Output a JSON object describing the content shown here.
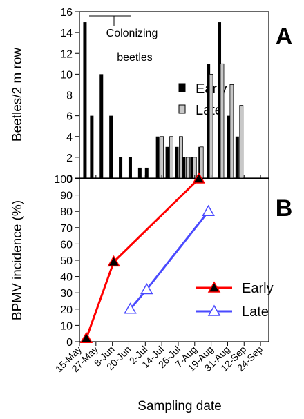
{
  "chart_data": [
    {
      "type": "bar",
      "panel_label": "A",
      "ylabel": "Beetles/2 m row",
      "ylim": [
        0,
        16
      ],
      "yticks": [
        0,
        2,
        4,
        6,
        8,
        10,
        12,
        14,
        16
      ],
      "grid": false,
      "legend_position": "right",
      "annotation": {
        "line1": "Colonizing",
        "line2": "beetles"
      },
      "series": [
        {
          "name": "Early",
          "color": "#000000",
          "points": [
            {
              "x": "2000-05-19",
              "y": 15
            },
            {
              "x": "2000-05-24",
              "y": 6
            },
            {
              "x": "2000-05-31",
              "y": 10
            },
            {
              "x": "2000-06-07",
              "y": 6
            },
            {
              "x": "2000-06-14",
              "y": 2
            },
            {
              "x": "2000-06-21",
              "y": 2
            },
            {
              "x": "2000-06-28",
              "y": 1
            },
            {
              "x": "2000-07-03",
              "y": 1
            },
            {
              "x": "2000-07-11",
              "y": 4
            },
            {
              "x": "2000-07-18",
              "y": 3
            },
            {
              "x": "2000-07-25",
              "y": 3
            },
            {
              "x": "2000-07-30",
              "y": 2
            },
            {
              "x": "2000-08-05",
              "y": 2
            },
            {
              "x": "2000-08-11",
              "y": 3
            },
            {
              "x": "2000-08-17",
              "y": 11
            },
            {
              "x": "2000-08-25",
              "y": 15
            },
            {
              "x": "2000-09-01",
              "y": 6
            },
            {
              "x": "2000-09-07",
              "y": 4
            }
          ]
        },
        {
          "name": "Late",
          "color": "#c8c8c8",
          "points": [
            {
              "x": "2000-07-14",
              "y": 4
            },
            {
              "x": "2000-07-21",
              "y": 4
            },
            {
              "x": "2000-07-28",
              "y": 4
            },
            {
              "x": "2000-08-02",
              "y": 2
            },
            {
              "x": "2000-08-07",
              "y": 2
            },
            {
              "x": "2000-08-12",
              "y": 3
            },
            {
              "x": "2000-08-19",
              "y": 10
            },
            {
              "x": "2000-08-27",
              "y": 11
            },
            {
              "x": "2000-09-03",
              "y": 9
            },
            {
              "x": "2000-09-10",
              "y": 7
            }
          ]
        }
      ]
    },
    {
      "type": "line",
      "panel_label": "B",
      "ylabel": "BPMV incidence (%)",
      "xlabel": "Sampling date",
      "ylim": [
        0,
        100
      ],
      "yticks": [
        0,
        10,
        20,
        30,
        40,
        50,
        60,
        70,
        80,
        90,
        100
      ],
      "grid": false,
      "legend_position": "bottom-right",
      "xticks": [
        {
          "label": "15-May",
          "date": "2000-05-15"
        },
        {
          "label": "27-May",
          "date": "2000-05-27"
        },
        {
          "label": "8-Jun",
          "date": "2000-06-08"
        },
        {
          "label": "20-Jun",
          "date": "2000-06-20"
        },
        {
          "label": "2-Jul",
          "date": "2000-07-02"
        },
        {
          "label": "14-Jul",
          "date": "2000-07-14"
        },
        {
          "label": "26-Jul",
          "date": "2000-07-26"
        },
        {
          "label": "7-Aug",
          "date": "2000-08-07"
        },
        {
          "label": "19-Aug",
          "date": "2000-08-19"
        },
        {
          "label": "31-Aug",
          "date": "2000-08-31"
        },
        {
          "label": "12-Sep",
          "date": "2000-09-12"
        },
        {
          "label": "24-Sep",
          "date": "2000-09-24"
        }
      ],
      "xlim": [
        "2000-05-15",
        "2000-09-30"
      ],
      "series": [
        {
          "name": "Early",
          "color": "#ff0000",
          "marker": "filled-triangle",
          "points": [
            {
              "x": "2000-05-20",
              "y": 2
            },
            {
              "x": "2000-06-09",
              "y": 49
            },
            {
              "x": "2000-08-10",
              "y": 100
            }
          ]
        },
        {
          "name": "Late",
          "color": "#4a4aff",
          "marker": "open-triangle",
          "points": [
            {
              "x": "2000-06-21",
              "y": 20
            },
            {
              "x": "2000-07-03",
              "y": 32
            },
            {
              "x": "2000-08-17",
              "y": 80
            }
          ]
        }
      ]
    }
  ]
}
